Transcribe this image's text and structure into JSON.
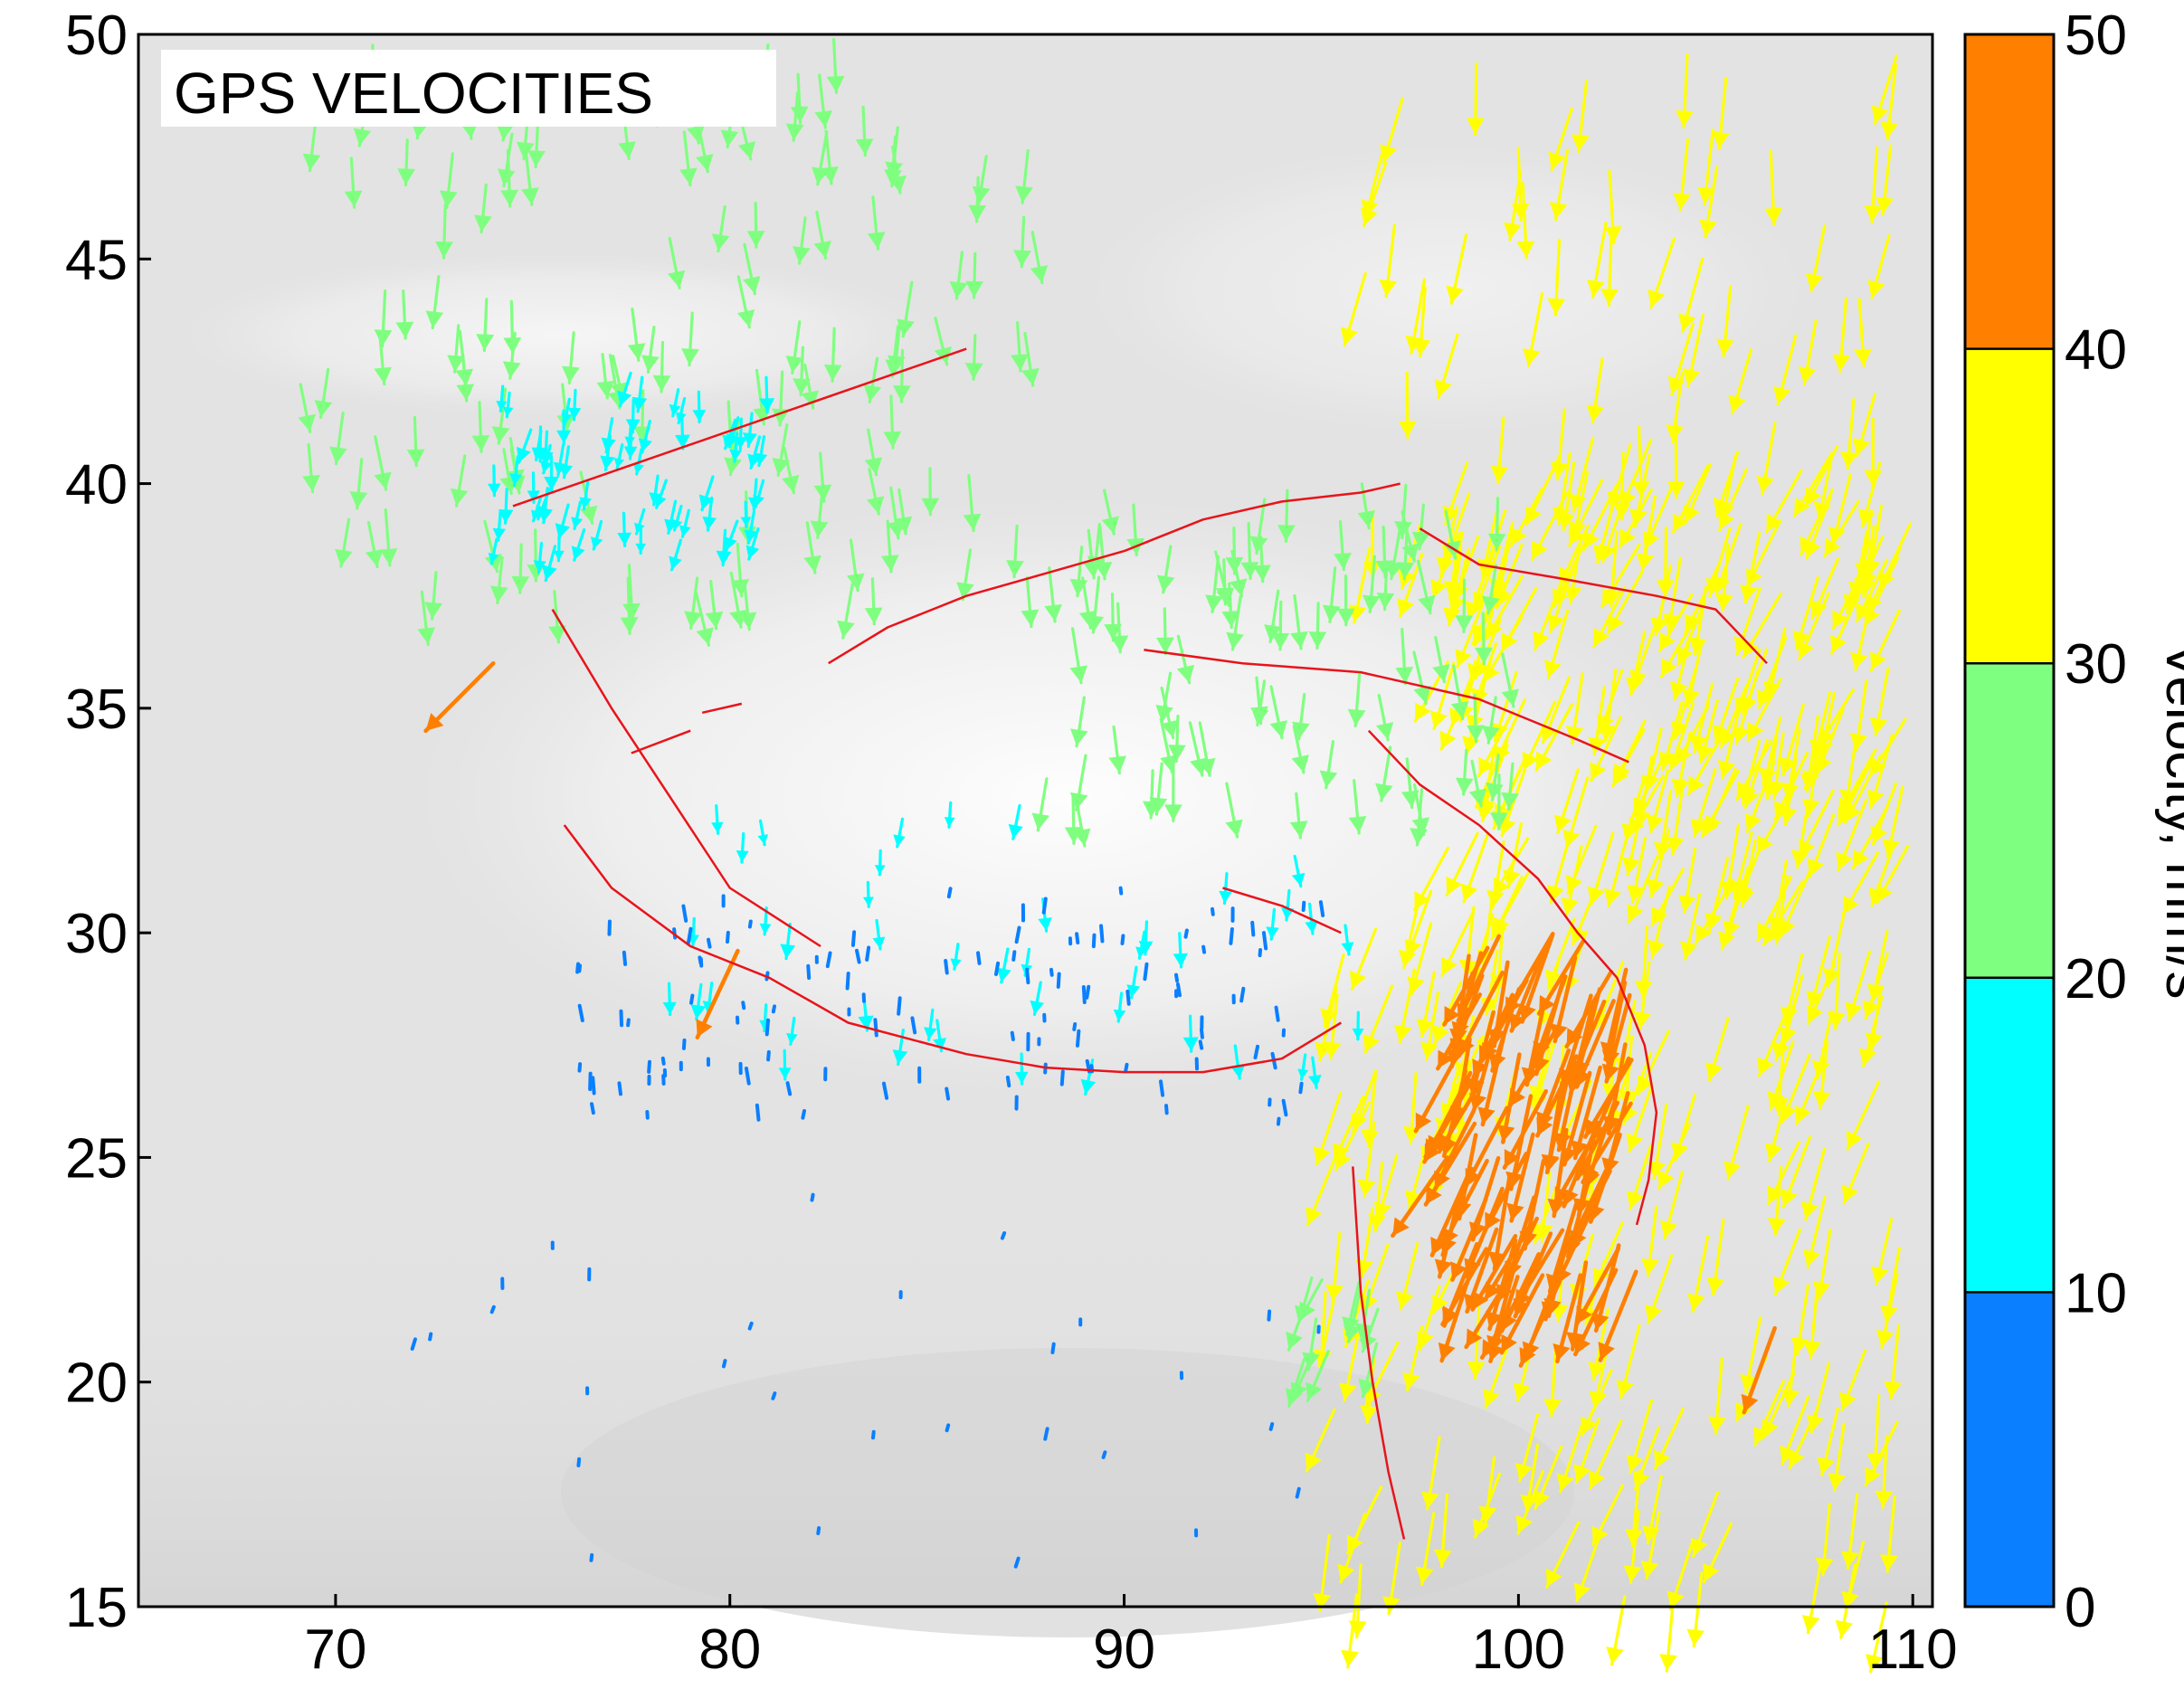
{
  "map": {
    "title": "GPS VELOCITIES",
    "x_ticks": [
      "70",
      "80",
      "90",
      "100",
      "110"
    ],
    "y_ticks": [
      "15",
      "20",
      "25",
      "30",
      "35",
      "40",
      "45",
      "50"
    ],
    "x_tick_values": [
      70,
      80,
      90,
      100,
      110
    ],
    "y_tick_values": [
      15,
      20,
      25,
      30,
      35,
      40,
      45,
      50
    ],
    "xlim": [
      65,
      110.5
    ],
    "ylim": [
      15,
      50
    ],
    "background_color": "#e3e3e3",
    "fault_color": "#e8141b"
  },
  "colorbar": {
    "label": "Velocity, mm/s",
    "ticks": [
      "0",
      "10",
      "20",
      "30",
      "40",
      "50"
    ],
    "tick_values": [
      0,
      10,
      20,
      30,
      40,
      50
    ],
    "bins": [
      {
        "min": 0,
        "max": 10,
        "color": "#0a7fff"
      },
      {
        "min": 10,
        "max": 20,
        "color": "#00ffff"
      },
      {
        "min": 20,
        "max": 30,
        "color": "#7fff7f"
      },
      {
        "min": 30,
        "max": 40,
        "color": "#ffff00"
      },
      {
        "min": 40,
        "max": 50,
        "color": "#ff7f00"
      }
    ]
  },
  "vector_field_regions": [
    {
      "name": "north-central-green",
      "lon": [
        69,
        88
      ],
      "lat": [
        37.5,
        50
      ],
      "velocity": 25,
      "bearing": 178,
      "count": 140
    },
    {
      "name": "tian-shan-cyan",
      "lon": [
        74,
        81
      ],
      "lat": [
        38.5,
        42.5
      ],
      "velocity": 15,
      "bearing": 190,
      "count": 70
    },
    {
      "name": "north-east-yellow",
      "lon": [
        96,
        110
      ],
      "lat": [
        38,
        50
      ],
      "velocity": 35,
      "bearing": 188,
      "count": 70
    },
    {
      "name": "ordos-yellow",
      "lon": [
        98,
        110
      ],
      "lat": [
        31,
        41
      ],
      "velocity": 35,
      "bearing": 200,
      "count": 220
    },
    {
      "name": "qaidam-green",
      "lon": [
        88,
        100
      ],
      "lat": [
        33,
        40
      ],
      "velocity": 25,
      "bearing": 178,
      "count": 90
    },
    {
      "name": "south-china-yellow",
      "lon": [
        95,
        110
      ],
      "lat": [
        15,
        31
      ],
      "velocity": 35,
      "bearing": 195,
      "count": 190
    },
    {
      "name": "yunnan-orange",
      "lon": [
        98.5,
        103
      ],
      "lat": [
        22,
        30
      ],
      "velocity": 45,
      "bearing": 200,
      "count": 110
    },
    {
      "name": "plateau-cyan",
      "lon": [
        78,
        96
      ],
      "lat": [
        27,
        33
      ],
      "velocity": 15,
      "bearing": 180,
      "count": 45
    },
    {
      "name": "himalaya-blue",
      "lon": [
        76,
        95
      ],
      "lat": [
        26,
        31
      ],
      "velocity": 5,
      "bearing": 180,
      "count": 120
    },
    {
      "name": "india-blue",
      "lon": [
        72,
        95
      ],
      "lat": [
        16,
        26
      ],
      "velocity": 3,
      "bearing": 190,
      "count": 30
    },
    {
      "name": "myanmar-green",
      "lon": [
        94.5,
        96.5
      ],
      "lat": [
        20.5,
        22.5
      ],
      "velocity": 25,
      "bearing": 200,
      "count": 12
    }
  ],
  "special_vectors": [
    {
      "lon": 74,
      "lat": 36,
      "velocity": 48,
      "bearing": 225
    },
    {
      "lon": 80.2,
      "lat": 29.6,
      "velocity": 48,
      "bearing": 205
    },
    {
      "lon": 98.2,
      "lat": 25,
      "velocity": 48,
      "bearing": 215
    },
    {
      "lon": 106.5,
      "lat": 21.2,
      "velocity": 45,
      "bearing": 200
    }
  ],
  "faults": [
    [
      [
        74.5,
        39.5
      ],
      [
        86,
        43
      ]
    ],
    [
      [
        75.5,
        37.2
      ],
      [
        77,
        35
      ],
      [
        78.5,
        33
      ],
      [
        80,
        31
      ],
      [
        82.3,
        29.7
      ]
    ],
    [
      [
        75.8,
        32.4
      ],
      [
        77,
        31
      ],
      [
        79,
        29.7
      ],
      [
        81,
        29
      ],
      [
        83,
        28
      ],
      [
        86,
        27.3
      ],
      [
        88,
        27
      ],
      [
        90,
        26.9
      ],
      [
        92,
        26.9
      ],
      [
        94,
        27.2
      ],
      [
        95.5,
        28
      ]
    ],
    [
      [
        82.5,
        36
      ],
      [
        84,
        36.8
      ],
      [
        86,
        37.5
      ],
      [
        88,
        38
      ],
      [
        90,
        38.5
      ],
      [
        92,
        39.2
      ],
      [
        94,
        39.6
      ],
      [
        96,
        39.8
      ],
      [
        97,
        40
      ]
    ],
    [
      [
        77.5,
        34
      ],
      [
        79,
        34.5
      ]
    ],
    [
      [
        79.3,
        34.9
      ],
      [
        80.3,
        35.1
      ]
    ],
    [
      [
        90.5,
        36.3
      ],
      [
        93,
        36
      ],
      [
        96,
        35.8
      ],
      [
        99,
        35.2
      ],
      [
        101.5,
        34.3
      ],
      [
        102.8,
        33.8
      ]
    ],
    [
      [
        97.5,
        39
      ],
      [
        99,
        38.2
      ],
      [
        101,
        37.9
      ],
      [
        103.5,
        37.5
      ],
      [
        105,
        37.2
      ],
      [
        106.3,
        36
      ]
    ],
    [
      [
        96.2,
        34.5
      ],
      [
        97.5,
        33.3
      ],
      [
        99,
        32.4
      ],
      [
        100.5,
        31.2
      ],
      [
        101.5,
        30
      ],
      [
        102.5,
        29
      ],
      [
        103.2,
        27.5
      ],
      [
        103.5,
        26
      ],
      [
        103.3,
        24.5
      ],
      [
        103,
        23.5
      ]
    ],
    [
      [
        92.5,
        31
      ],
      [
        94,
        30.6
      ],
      [
        95.5,
        30
      ]
    ],
    [
      [
        95.8,
        24.8
      ],
      [
        96,
        22
      ],
      [
        96.3,
        20
      ],
      [
        96.7,
        18
      ],
      [
        97.1,
        16.5
      ]
    ]
  ]
}
